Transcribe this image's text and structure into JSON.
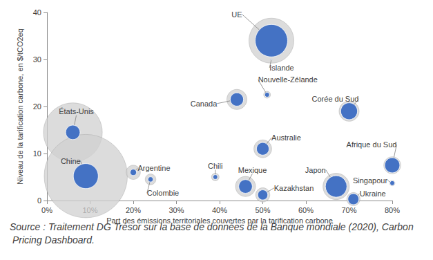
{
  "chart_data": {
    "type": "scatter",
    "x_label": "Part des émissions territoriales couvertes par la tarification carbone",
    "y_label": "Niveau de la tarification carbone, en $/tCO2eq",
    "source": "Source : Traitement DG Trésor sur la base de données de la Banque mondiale (2020), Carbon Pricing Dashboard.",
    "labels": [
      "États-Unis",
      "Chine",
      "Argentine",
      "Colombie",
      "Chili",
      "Mexique",
      "Kazakhstan",
      "Canada",
      "Nouvelle-Zélande",
      "Australie",
      "UE",
      "Islande",
      "Corée du Sud",
      "Japon",
      "Singapour",
      "Afrique du Sud",
      "Ukraine"
    ],
    "x": [
      6,
      9,
      20,
      24,
      39,
      46,
      50,
      44,
      51,
      50,
      52,
      52,
      70,
      67,
      80,
      80,
      71
    ],
    "values": [
      14.5,
      5.2,
      6,
      4.5,
      5,
      3,
      1.2,
      21.5,
      22.5,
      11,
      34,
      30,
      19,
      3,
      3.7,
      7.5,
      0.3
    ],
    "series": [
      {
        "color": "#d0d0d0",
        "sizes": [
          6000,
          12000,
          350,
          200,
          100,
          700,
          350,
          700,
          80,
          550,
          3500,
          5,
          700,
          1200,
          50,
          500,
          300
        ]
      },
      {
        "color": "#4472c4",
        "sizes": [
          360,
          1080,
          70,
          48,
          39,
          322,
          175,
          308,
          41,
          275,
          1820,
          3,
          490,
          804,
          40,
          400,
          213
        ]
      }
    ],
    "xlim": [
      0,
      80
    ],
    "xticks": [
      {
        "value": 0,
        "label": "0%"
      },
      {
        "value": 10,
        "label": "10%"
      },
      {
        "value": 20,
        "label": "20%"
      },
      {
        "value": 30,
        "label": "30%"
      },
      {
        "value": 40,
        "label": "40%"
      },
      {
        "value": 50,
        "label": "50%"
      },
      {
        "value": 60,
        "label": "60%"
      },
      {
        "value": 70,
        "label": "70%"
      },
      {
        "value": 80,
        "label": "80%"
      }
    ],
    "ylim": [
      0,
      40
    ],
    "yticks": [
      0,
      10,
      20,
      30,
      40
    ],
    "grid": false,
    "data_labels": false
  }
}
